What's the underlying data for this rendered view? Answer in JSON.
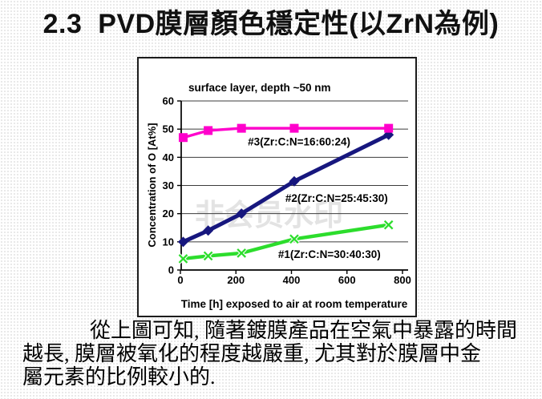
{
  "slide": {
    "title": "2.3  PVD膜層顏色穩定性(以ZrN為例)",
    "caption_lines": [
      "從上圖可知, 隨著鍍膜產品在空氣中暴露的時間",
      "越長, 膜層被氧化的程度越嚴重, 尤其對於膜層中金",
      "屬元素的比例較小的."
    ],
    "watermark": "非会员水印",
    "watermark_color": "#e3e3e3"
  },
  "chart_data": {
    "type": "line",
    "title": "surface layer, depth ~50 nm",
    "xlabel": "Time [h] exposed to air at room temperature",
    "ylabel": "Concentration of O [At%]",
    "xlim": [
      0,
      800
    ],
    "ylim": [
      0,
      60
    ],
    "xticks": [
      0,
      200,
      400,
      600,
      800
    ],
    "yticks": [
      0,
      10,
      20,
      30,
      40,
      50,
      60
    ],
    "grid": "horizontal",
    "legend_position": "inline-labels",
    "x": [
      10,
      100,
      220,
      410,
      750
    ],
    "series": [
      {
        "name": "#3(Zr:C:N=16:60:24)",
        "values": [
          47,
          49.5,
          50.3,
          50.3,
          50.3
        ],
        "color": "#ff00cc",
        "marker": "square",
        "label_pos": [
          243,
          44.2
        ]
      },
      {
        "name": "#2(Zr:C:N=25:45:30)",
        "values": [
          10,
          14,
          20,
          31.5,
          48
        ],
        "color": "#17177e",
        "marker": "diamond",
        "label_pos": [
          378,
          24.2
        ]
      },
      {
        "name": "#1(Zr:C:N=30:40:30)",
        "values": [
          4,
          5,
          6,
          11,
          16
        ],
        "color": "#2cdd2c",
        "marker": "x",
        "label_pos": [
          352,
          4.3
        ]
      }
    ]
  }
}
